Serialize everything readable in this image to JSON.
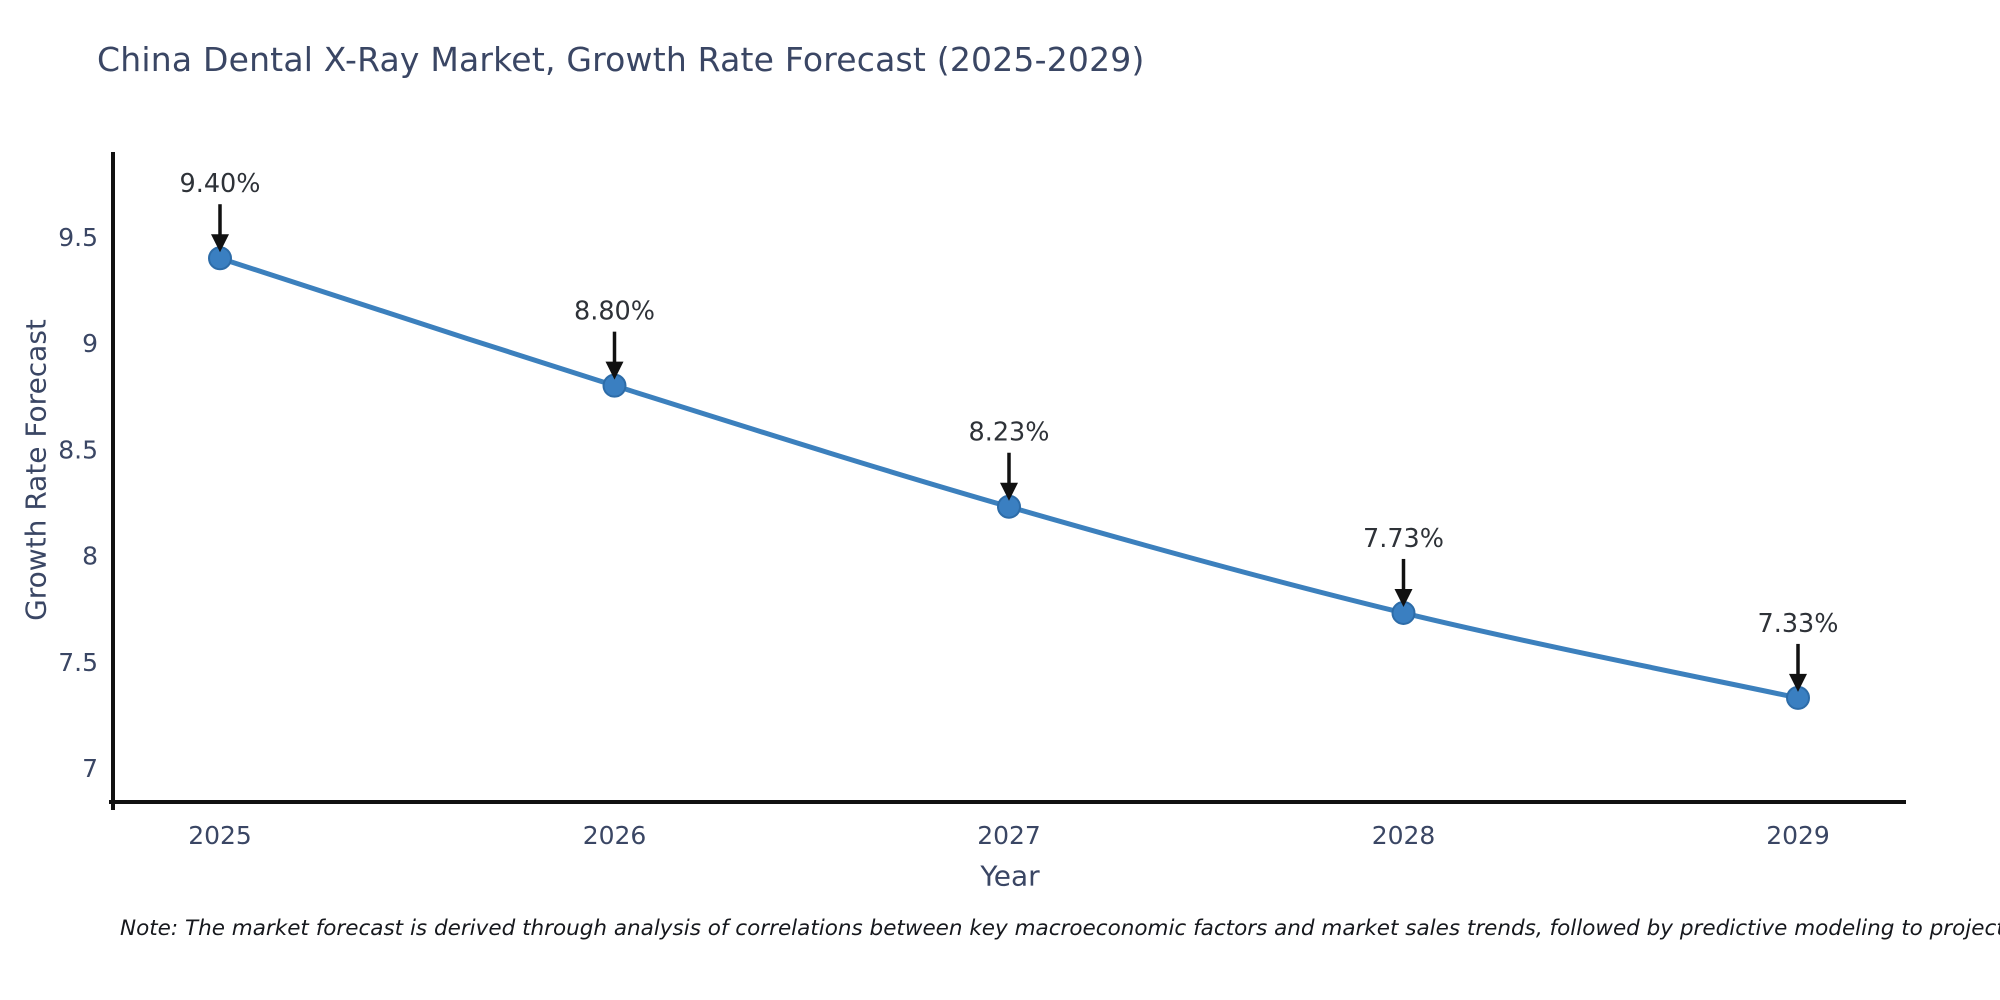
{
  "title": "China Dental X-Ray Market, Growth Rate Forecast (2025-2029)",
  "note": "Note: The market forecast is derived through analysis of correlations between key macroeconomic factors and market sales trends, followed by predictive modeling to project future sales",
  "chart_data": {
    "type": "line",
    "title": "China Dental X-Ray Market, Growth Rate Forecast (2025-2029)",
    "xlabel": "Year",
    "ylabel": "Growth Rate Forecast",
    "x": [
      2025,
      2026,
      2027,
      2028,
      2029
    ],
    "values": [
      9.4,
      8.8,
      8.23,
      7.73,
      7.33
    ],
    "point_labels": [
      "9.40%",
      "8.80%",
      "8.23%",
      "7.73%",
      "7.33%"
    ],
    "yticks": [
      7,
      7.5,
      8,
      8.5,
      9,
      9.5
    ],
    "ytick_labels": [
      "7",
      "7.5",
      "8",
      "8.5",
      "9",
      "9.5"
    ],
    "ylim": [
      6.84,
      9.9
    ],
    "grid": false,
    "legend_position": "none",
    "line_color": "#3c80bd",
    "marker_color": "#3a7fc1",
    "marker_edge_color": "#2d6ca8",
    "axis_color": "#111111",
    "tick_text_color": "#3a4664",
    "annotation_text_color": "#2e3238",
    "annotation_arrow_color": "#111111"
  }
}
